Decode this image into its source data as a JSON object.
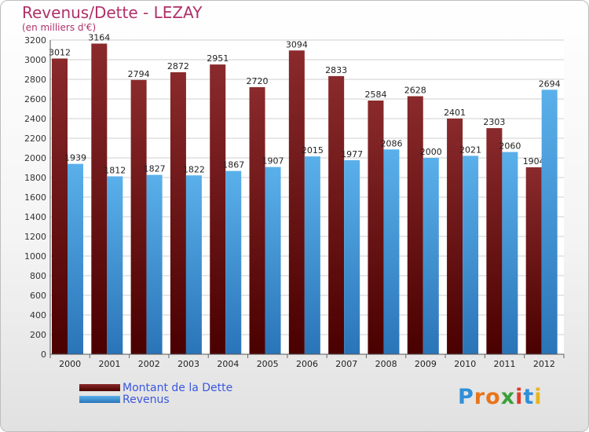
{
  "header": {
    "title": "Revenus/Dette - LEZAY",
    "subtitle": "(en milliers d'€)"
  },
  "legend": {
    "items": [
      {
        "label": "Montant de la Dette",
        "color": "#7a1a1c"
      },
      {
        "label": "Revenus",
        "color": "#4a9fe3"
      }
    ]
  },
  "logo": {
    "text": "Proxiti"
  },
  "colors": {
    "debt_top": "#8a2a2c",
    "debt_bottom": "#4a0000",
    "rev_top": "#5ab0ea",
    "rev_bottom": "#2a74b8",
    "title": "#b03068",
    "legend_text": "#3a57e0"
  },
  "chart_data": {
    "type": "bar",
    "title": "Revenus/Dette - LEZAY",
    "ylabel": "(en milliers d'€)",
    "categories": [
      "2000",
      "2001",
      "2002",
      "2003",
      "2004",
      "2005",
      "2006",
      "2007",
      "2008",
      "2009",
      "2010",
      "2011",
      "2012"
    ],
    "series": [
      {
        "name": "Montant de la Dette",
        "values": [
          3012,
          3164,
          2794,
          2872,
          2951,
          2720,
          3094,
          2833,
          2584,
          2628,
          2401,
          2303,
          1904
        ]
      },
      {
        "name": "Revenus",
        "values": [
          1939,
          1812,
          1827,
          1822,
          1867,
          1907,
          2015,
          1977,
          2086,
          2000,
          2021,
          2060,
          2694
        ]
      }
    ],
    "ylim": [
      0,
      3200
    ],
    "yticks": [
      0,
      200,
      400,
      600,
      800,
      1000,
      1200,
      1400,
      1600,
      1800,
      2000,
      2200,
      2400,
      2600,
      2800,
      3000,
      3200
    ],
    "grid": true,
    "legend_position": "bottom-left"
  }
}
